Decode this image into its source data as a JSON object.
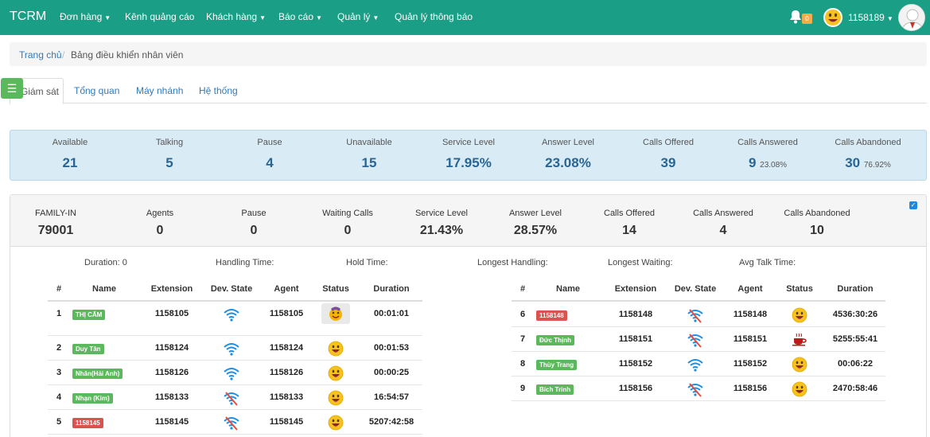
{
  "nav": {
    "brand": "TCRM",
    "items": [
      "Đơn hàng",
      "Kênh quảng cáo",
      "Khách hàng",
      "Báo cáo",
      "Quản lý",
      "Quản lý thông báo"
    ],
    "notification_count": "0",
    "user": "1158189"
  },
  "breadcrumb": {
    "home": "Trang chủ",
    "separator": "/",
    "current": "Bảng điều khiển nhân viên"
  },
  "tabs": [
    "Giám sát",
    "Tổng quan",
    "Máy nhánh",
    "Hệ thống"
  ],
  "summary": [
    {
      "label": "Available",
      "value": "21"
    },
    {
      "label": "Talking",
      "value": "5"
    },
    {
      "label": "Pause",
      "value": "4"
    },
    {
      "label": "Unavailable",
      "value": "15"
    },
    {
      "label": "Service Level",
      "value": "17.95%"
    },
    {
      "label": "Answer Level",
      "value": "23.08%"
    },
    {
      "label": "Calls Offered",
      "value": "39"
    },
    {
      "label": "Calls Answered",
      "value": "9",
      "pct": "23.08%"
    },
    {
      "label": "Calls Abandoned",
      "value": "30",
      "pct": "76.92%"
    }
  ],
  "queue": [
    {
      "label": "FAMILY-IN",
      "value": "79001"
    },
    {
      "label": "Agents",
      "value": "0"
    },
    {
      "label": "Pause",
      "value": "0"
    },
    {
      "label": "Waiting Calls",
      "value": "0"
    },
    {
      "label": "Service Level",
      "value": "21.43%"
    },
    {
      "label": "Answer Level",
      "value": "28.57%"
    },
    {
      "label": "Calls Offered",
      "value": "14"
    },
    {
      "label": "Calls Answered",
      "value": "4"
    },
    {
      "label": "Calls Abandoned",
      "value": "10"
    }
  ],
  "metrics": [
    "Duration: 0",
    "Handling Time:",
    "Hold Time:",
    "Longest Handling:",
    "Longest Waiting:",
    "Avg Talk Time:"
  ],
  "columns": [
    "#",
    "Name",
    "Extension",
    "Dev. State",
    "Agent",
    "Status",
    "Duration"
  ],
  "left_rows": [
    {
      "n": "1",
      "name": "THỊ CẨM",
      "color": "green",
      "ext": "1158105",
      "dev": "wifi",
      "agent": "1158105",
      "status": "busy",
      "dur": "00:01:01"
    },
    {
      "n": "2",
      "name": "Duy Tân",
      "color": "green",
      "ext": "1158124",
      "dev": "wifi",
      "agent": "1158124",
      "status": "happy",
      "dur": "00:01:53"
    },
    {
      "n": "3",
      "name": "Nhân(Hải Anh)",
      "color": "green",
      "ext": "1158126",
      "dev": "wifi",
      "agent": "1158126",
      "status": "happy",
      "dur": "00:00:25"
    },
    {
      "n": "4",
      "name": "Nhạn (Kim)",
      "color": "green",
      "ext": "1158133",
      "dev": "wifi-off",
      "agent": "1158133",
      "status": "happy",
      "dur": "16:54:57"
    },
    {
      "n": "5",
      "name": "1158145",
      "color": "red",
      "ext": "1158145",
      "dev": "wifi-off",
      "agent": "1158145",
      "status": "happy",
      "dur": "5207:42:58"
    }
  ],
  "right_rows": [
    {
      "n": "6",
      "name": "1158148",
      "color": "red",
      "ext": "1158148",
      "dev": "wifi-off",
      "agent": "1158148",
      "status": "happy",
      "dur": "4536:30:26"
    },
    {
      "n": "7",
      "name": "Đức Thịnh",
      "color": "green",
      "ext": "1158151",
      "dev": "wifi-off",
      "agent": "1158151",
      "status": "coffee",
      "dur": "5255:55:41"
    },
    {
      "n": "8",
      "name": "Thùy Trang",
      "color": "green",
      "ext": "1158152",
      "dev": "wifi",
      "agent": "1158152",
      "status": "happy",
      "dur": "00:06:22"
    },
    {
      "n": "9",
      "name": "Bích Trinh",
      "color": "green",
      "ext": "1158156",
      "dev": "wifi-off",
      "agent": "1158156",
      "status": "happy",
      "dur": "2470:58:46"
    }
  ],
  "colors": {
    "navbar": "#1a9e86",
    "summary_bg": "#d9ebf5",
    "summary_value": "#2a6592",
    "tag_green": "#5cb85c",
    "tag_red": "#d9534f",
    "wifi": "#1e8fe0",
    "wifi_off": "#3a7bd5"
  }
}
